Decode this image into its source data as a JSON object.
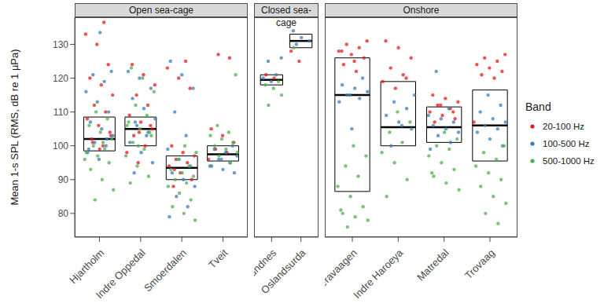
{
  "chart_data": {
    "type": "scatter",
    "y_label": "Mean 1-s SPL (RMS, dB re 1 µPa)",
    "ylim": [
      73,
      138
    ],
    "yticks": [
      80,
      90,
      100,
      110,
      120,
      130
    ],
    "legend": "right",
    "legend_title": "Band",
    "bands": [
      {
        "name": "20-100 Hz",
        "color": "#e41a1c"
      },
      {
        "name": "100-500 Hz",
        "color": "#377eb8"
      },
      {
        "name": "500-1000 Hz",
        "color": "#4daf4a"
      }
    ],
    "panels": [
      {
        "title": "Open sea-cage",
        "sites": [
          {
            "name": "Hjartholm",
            "q1": 98.5,
            "median": 102,
            "q3": 108.5,
            "points": [
              [
                100,
                102,
                104,
                106,
                108,
                110,
                112,
                115,
                118,
                120,
                124,
                130,
                133,
                136.5,
                101,
                103,
                99
              ],
              [
                96,
                98,
                100,
                101,
                103,
                105,
                107,
                110,
                113,
                116,
                119,
                121,
                122,
                133.5,
                99,
                102
              ],
              [
                84,
                87,
                90,
                93,
                95,
                97,
                98,
                99,
                100,
                102,
                104,
                106,
                108,
                110,
                96,
                101
              ]
            ]
          },
          {
            "name": "Indre Oppedal",
            "q1": 100,
            "median": 105,
            "q3": 108.5,
            "points": [
              [
                95,
                98,
                100,
                103,
                105,
                107,
                109,
                112,
                115,
                118,
                121,
                124,
                106,
                104
              ],
              [
                92,
                95,
                98,
                101,
                104,
                106,
                108,
                111,
                114,
                117,
                120,
                122,
                103,
                107
              ],
              [
                89,
                91,
                94,
                97,
                99,
                101,
                103,
                105,
                107,
                109,
                112,
                116,
                120,
                123,
                104,
                100,
                106
              ]
            ]
          },
          {
            "name": "Smoerdalen",
            "q1": 90,
            "median": 93.5,
            "q3": 97,
            "points": [
              [
                88,
                90,
                92,
                94,
                95,
                96,
                97,
                98,
                100,
                117,
                120,
                123,
                125,
                93
              ],
              [
                79,
                82,
                85,
                88,
                90,
                92,
                94,
                96,
                99,
                103,
                110,
                117,
                121,
                125
              ],
              [
                78,
                80,
                82,
                84,
                86,
                88,
                89,
                90,
                91,
                92,
                93,
                94,
                96,
                98,
                100
              ]
            ]
          },
          {
            "name": "Tveit",
            "q1": 95.5,
            "median": 97.5,
            "q3": 100,
            "points": [
              [
                96,
                98,
                99,
                101,
                103,
                105,
                126,
                127
              ],
              [
                92,
                93,
                94,
                95,
                96,
                97,
                98,
                99,
                100,
                96,
                94
              ],
              [
                95,
                97,
                98,
                99,
                100,
                101,
                102,
                103,
                104,
                106,
                121
              ]
            ]
          }
        ]
      },
      {
        "title": "Closed sea-cage",
        "sites": [
          {
            "name": "Gjermundnes",
            "q1": 118,
            "median": 119.5,
            "q3": 121,
            "points": [
              [
                120,
                121
              ],
              [
                119,
                120,
                121,
                125,
                126
              ],
              [
                112,
                115,
                117,
                118,
                119
              ]
            ]
          },
          {
            "name": "Oslandsurda",
            "q1": 129,
            "median": 131,
            "q3": 133,
            "points": [
              [
                125,
                128
              ],
              [
                130,
                131,
                132,
                134
              ],
              [
                129
              ]
            ]
          }
        ]
      },
      {
        "title": "Onshore",
        "sites": [
          {
            "name": "Gjaeravaagen",
            "q1": 86.5,
            "median": 115,
            "q3": 126,
            "points": [
              [
                122,
                124,
                126,
                127,
                128,
                129,
                130,
                131,
                125,
                128
              ],
              [
                105,
                113,
                114,
                115,
                116,
                117,
                118,
                120,
                115
              ],
              [
                76,
                78,
                79,
                80,
                82,
                85,
                88,
                91,
                94,
                97,
                100,
                81
              ]
            ]
          },
          {
            "name": "Indre Haroeya",
            "q1": 100,
            "median": 105.5,
            "q3": 119,
            "points": [
              [
                117,
                119,
                121,
                123,
                126,
                129,
                131,
                120
              ],
              [
                100,
                105,
                107,
                109,
                111,
                113,
                115,
                106
              ],
              [
                85,
                90,
                95,
                98,
                101,
                104,
                107,
                110
              ]
            ]
          },
          {
            "name": "Matredal",
            "q1": 101,
            "median": 105.5,
            "q3": 111.5,
            "points": [
              [
                107,
                108,
                109,
                110,
                111,
                112,
                113,
                114,
                115,
                110,
                112
              ],
              [
                99,
                101,
                103,
                104,
                105,
                106,
                107,
                108,
                109,
                111,
                122
              ],
              [
                87,
                89,
                91,
                93,
                95,
                97,
                99,
                100,
                102,
                104,
                92
              ]
            ]
          },
          {
            "name": "Trovaag",
            "q1": 95.5,
            "median": 106,
            "q3": 116.5,
            "points": [
              [
                107,
                120,
                121,
                122,
                123,
                124,
                125,
                126,
                127
              ],
              [
                100,
                102,
                104,
                105,
                106,
                107,
                108,
                110,
                112,
                115
              ],
              [
                77,
                80,
                83,
                85,
                88,
                90,
                92,
                94,
                96,
                98,
                100
              ]
            ]
          }
        ]
      }
    ]
  }
}
